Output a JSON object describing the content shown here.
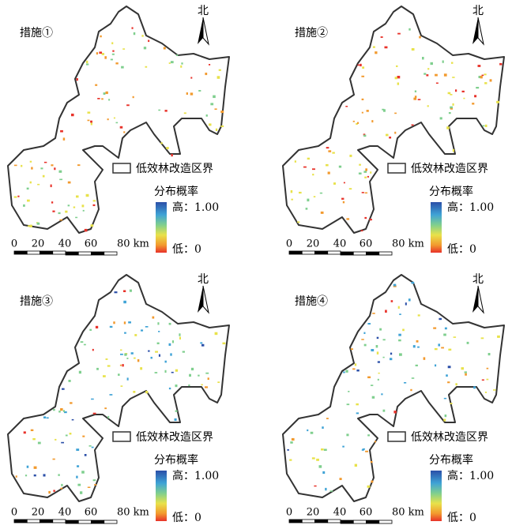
{
  "panels": [
    {
      "title": "措施①",
      "north": "北",
      "legend": {
        "boundary": "低效林改造区界",
        "title": "分布概率",
        "high": "高：1.00",
        "low": "低：0"
      },
      "scale": [
        "0",
        "20",
        "40",
        "60",
        "80 km"
      ]
    },
    {
      "title": "措施②",
      "north": "北",
      "legend": {
        "boundary": "低效林改造区界",
        "title": "分布概率",
        "high": "高：1.00",
        "low": "低：0"
      },
      "scale": [
        "0",
        "20",
        "40",
        "60",
        "80 km"
      ]
    },
    {
      "title": "措施③",
      "north": "北",
      "legend": {
        "boundary": "低效林改造区界",
        "title": "分布概率",
        "high": "高：1.00",
        "low": "低：0"
      },
      "scale": [
        "0",
        "20",
        "40",
        "60",
        "80 km"
      ]
    },
    {
      "title": "措施④",
      "north": "北",
      "legend": {
        "boundary": "低效林改造区界",
        "title": "分布概率",
        "high": "高：1.00",
        "low": "低：0"
      },
      "scale": [
        "0",
        "20",
        "40",
        "60",
        "80 km"
      ]
    }
  ]
}
